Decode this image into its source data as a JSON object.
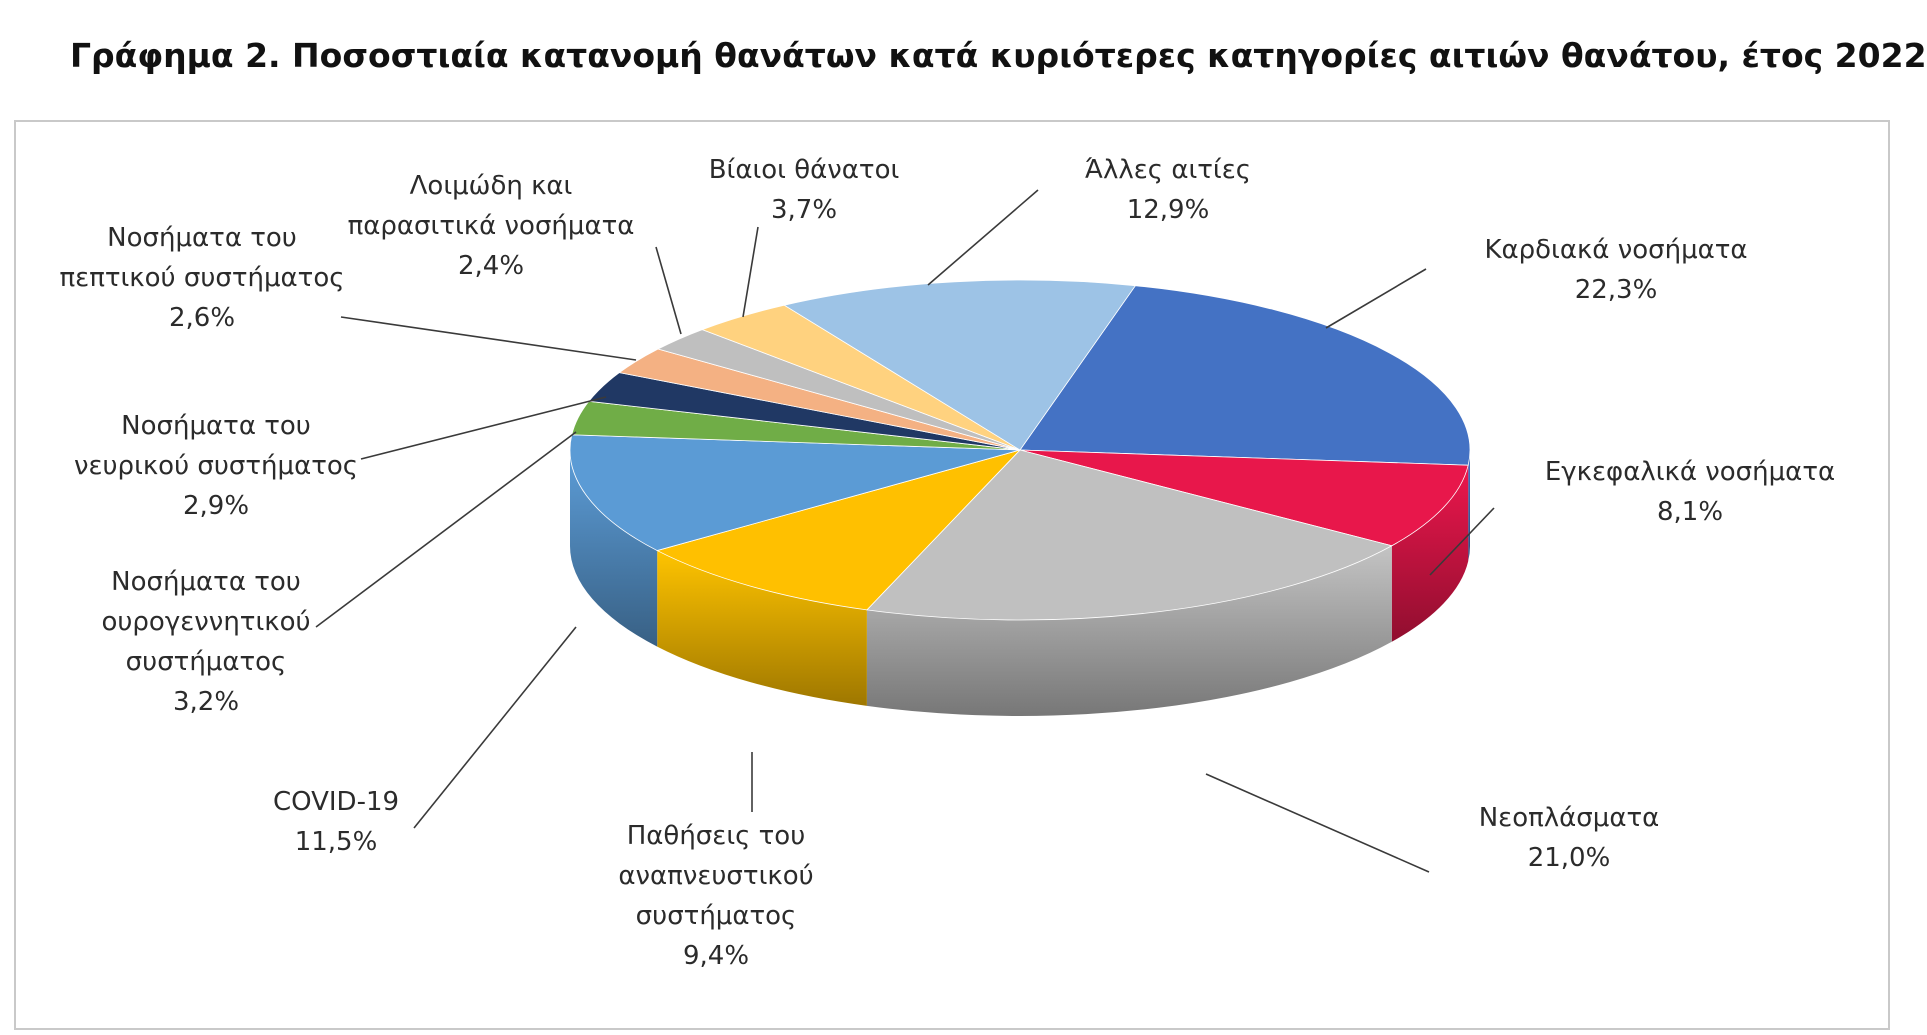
{
  "chart_data": {
    "type": "pie",
    "title": "Γράφημα 2. Ποσοστιαία κατανομή θανάτων κατά κυριότερες κατηγορίες αιτιών θανάτου, έτος 2022",
    "unit": "%",
    "slices": [
      {
        "label": [
          "Καρδιακά νοσήματα"
        ],
        "value": 22.3,
        "value_text": "22,3%",
        "color": "#4472c4"
      },
      {
        "label": [
          "Εγκεφαλικά νοσήματα"
        ],
        "value": 8.1,
        "value_text": "8,1%",
        "color": "#e8174b"
      },
      {
        "label": [
          "Νεοπλάσματα"
        ],
        "value": 21.0,
        "value_text": "21,0%",
        "color": "#c0c0c0"
      },
      {
        "label": [
          "Παθήσεις του",
          "αναπνευστικού",
          "συστήματος"
        ],
        "value": 9.4,
        "value_text": "9,4%",
        "color": "#ffc000"
      },
      {
        "label": [
          "COVID-19"
        ],
        "value": 11.5,
        "value_text": "11,5%",
        "color": "#5b9bd5"
      },
      {
        "label": [
          "Νοσήματα του",
          "ουρογεννητικού",
          "συστήματος"
        ],
        "value": 3.2,
        "value_text": "3,2%",
        "color": "#70ad47"
      },
      {
        "label": [
          "Νοσήματα του",
          "νευρικού συστήματος"
        ],
        "value": 2.9,
        "value_text": "2,9%",
        "color": "#203864"
      },
      {
        "label": [
          "Νοσήματα του",
          "πεπτικού συστήματος"
        ],
        "value": 2.6,
        "value_text": "2,6%",
        "color": "#f4b183"
      },
      {
        "label": [
          "Λοιμώδη και",
          "παρασιτικά νοσήματα"
        ],
        "value": 2.4,
        "value_text": "2,4%",
        "color": "#bfbfbf"
      },
      {
        "label": [
          "Βίαιοι θάνατοι"
        ],
        "value": 3.7,
        "value_text": "3,7%",
        "color": "#ffd27f"
      },
      {
        "label": [
          "Άλλες αιτίες"
        ],
        "value": 12.9,
        "value_text": "12,9%",
        "color": "#9dc3e6"
      }
    ]
  }
}
